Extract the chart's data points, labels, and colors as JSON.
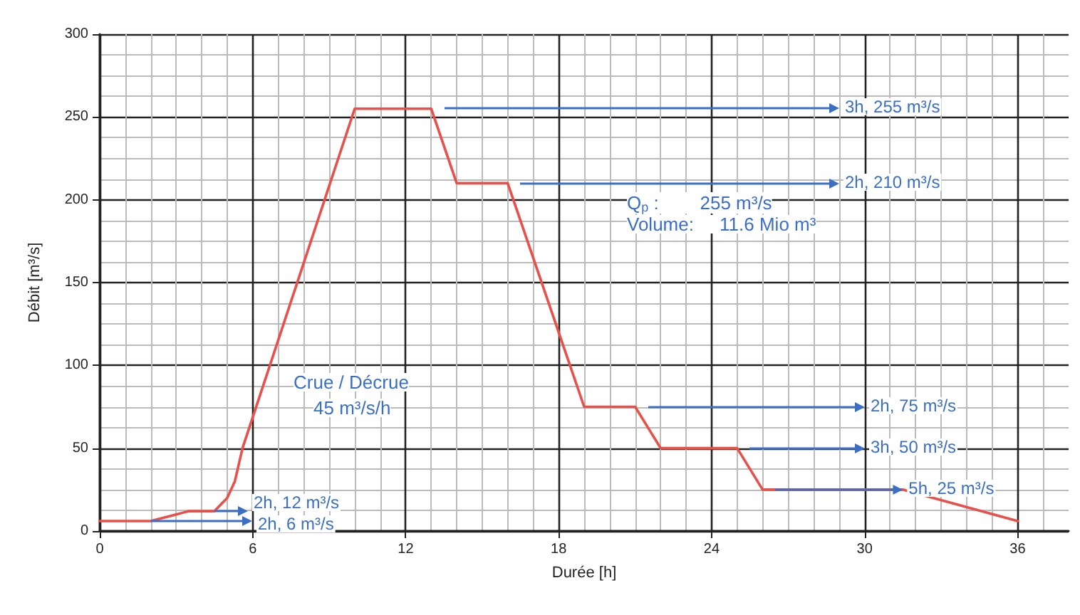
{
  "chart_data": {
    "type": "line",
    "xlabel": "Durée [h]",
    "ylabel": "Débit [m³/s]",
    "series": [
      {
        "color": "#e8504a",
        "x": [
          0,
          2,
          3,
          3.5,
          4.5,
          5,
          5.3,
          5.6,
          10,
          13,
          14,
          16,
          19,
          21,
          22,
          25,
          26,
          31.5,
          36
        ],
        "values": [
          6,
          6,
          10,
          12,
          12,
          20,
          30,
          50,
          255,
          255,
          210,
          210,
          75,
          75,
          50,
          50,
          25,
          25,
          6
        ]
      }
    ],
    "xlim": [
      0,
      38
    ],
    "xticks": [
      0,
      6,
      12,
      18,
      24,
      30,
      36
    ],
    "ylim": [
      0,
      300
    ],
    "yticks": [
      0,
      50,
      100,
      150,
      200,
      250,
      300
    ],
    "grid": true,
    "marker": "none",
    "line_style": "solid",
    "annotations": [
      "3h, 255 m³/s",
      "2h, 210 m³/s",
      "2h, 75 m³/s",
      "3h, 50 m³/s",
      {
        "text": "5h, 25 m³/s",
        "x": 31.5,
        "y": 25
      },
      {
        "text": "2h, 12 m³/s",
        "x": 4.5,
        "y": 12
      },
      {
        "text": "2h, 6 m³/s",
        "x": 2,
        "y": 6
      },
      "Crue / Décrue",
      "45 m³/s/h",
      "Q$_{p}$ :        255 m³/s",
      "Volume:     11.6 Mio m³"
    ]
  }
}
